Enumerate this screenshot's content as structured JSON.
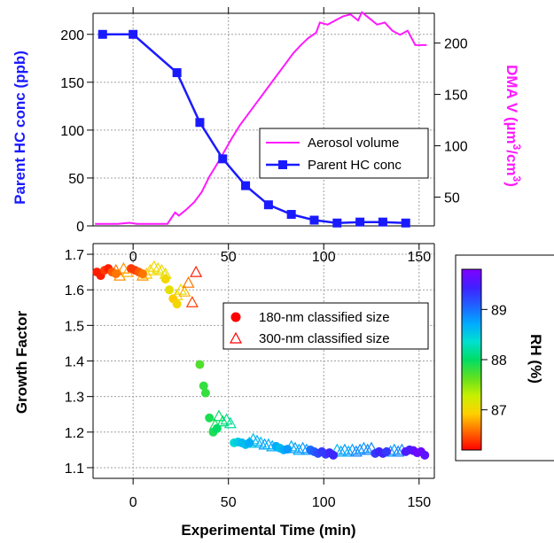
{
  "colors": {
    "hc": "#1a1aff",
    "aerosol": "#ff19ff",
    "grid": "#a0a0a0",
    "axis": "#000000"
  },
  "chart_data": [
    {
      "id": "top",
      "type": "line",
      "xlim": [
        -21,
        158
      ],
      "x_ticks": [
        0,
        50,
        100,
        150
      ],
      "x_tick_labels": [
        "0",
        "50",
        "100",
        "150"
      ],
      "y_left": {
        "label": "Parent HC conc (ppb)",
        "ylim": [
          0,
          222
        ],
        "ticks": [
          0,
          50,
          100,
          150,
          200
        ]
      },
      "y_right": {
        "label": "DMA V (µm³/cm³)",
        "label_main": "DMA V (µm",
        "sup1": "3",
        "label_mid": "/cm",
        "sup2": "3",
        "label_end": ")",
        "ylim": [
          22,
          229
        ],
        "ticks": [
          50,
          100,
          150,
          200
        ]
      },
      "grid": true,
      "legend": {
        "position": "center-right",
        "entries": [
          "Aerosol volume",
          "Parent HC conc"
        ]
      },
      "series": [
        {
          "name": "Parent HC conc",
          "axis": "left",
          "marker": "square",
          "x": [
            -16,
            0,
            23,
            35,
            47,
            59,
            71,
            83,
            95,
            107,
            119,
            131,
            143
          ],
          "values": [
            200,
            200,
            160,
            108,
            70,
            42,
            22,
            12,
            6,
            3,
            4,
            4,
            3
          ]
        },
        {
          "name": "Aerosol volume",
          "axis": "right",
          "marker": "none",
          "x": [
            -20,
            -14,
            -8,
            -2,
            2,
            6,
            12,
            18,
            22,
            24,
            28,
            32,
            36,
            40,
            44,
            48,
            52,
            56,
            60,
            64,
            68,
            72,
            76,
            80,
            84,
            88,
            92,
            96,
            98,
            102,
            106,
            110,
            114,
            118,
            120,
            124,
            128,
            132,
            136,
            140,
            144,
            148,
            154
          ],
          "values": [
            24,
            24,
            24,
            25,
            24,
            24,
            24,
            24,
            35,
            32,
            38,
            45,
            55,
            70,
            82,
            95,
            108,
            120,
            130,
            140,
            150,
            160,
            170,
            180,
            190,
            198,
            205,
            210,
            220,
            218,
            222,
            226,
            228,
            222,
            230,
            224,
            218,
            220,
            212,
            208,
            212,
            198,
            198
          ]
        }
      ]
    },
    {
      "id": "bottom",
      "type": "scatter",
      "xlim": [
        -21,
        158
      ],
      "x_ticks": [
        0,
        50,
        100,
        150
      ],
      "x_tick_labels": [
        "0",
        "50",
        "100",
        "150"
      ],
      "xlabel": "Experimental Time (min)",
      "ylabel": "Growth Factor",
      "ylim": [
        1.07,
        1.73
      ],
      "y_ticks": [
        1.1,
        1.2,
        1.3,
        1.4,
        1.5,
        1.6,
        1.7
      ],
      "y_tick_labels": [
        "1.1",
        "1.2",
        "1.3",
        "1.4",
        "1.5",
        "1.6",
        "1.7"
      ],
      "grid": true,
      "legend": {
        "position": "center-right",
        "entries": [
          "180-nm classified size",
          "300-nm classified size"
        ]
      },
      "series": [
        {
          "name": "180-nm classified size",
          "marker": "circle",
          "points": [
            [
              -19,
              1.65,
              86.3
            ],
            [
              -17,
              1.64,
              86.3
            ],
            [
              -15,
              1.655,
              86.4
            ],
            [
              -13,
              1.66,
              86.3
            ],
            [
              -11,
              1.65,
              86.5
            ],
            [
              -9,
              1.645,
              86.6
            ],
            [
              -1,
              1.66,
              86.4
            ],
            [
              1,
              1.655,
              86.4
            ],
            [
              3,
              1.65,
              86.5
            ],
            [
              5,
              1.645,
              86.6
            ],
            [
              17,
              1.63,
              87.0
            ],
            [
              19,
              1.6,
              87.1
            ],
            [
              21,
              1.575,
              86.9
            ],
            [
              23,
              1.56,
              87.0
            ],
            [
              35,
              1.39,
              87.7
            ],
            [
              37,
              1.33,
              87.8
            ],
            [
              38,
              1.31,
              87.8
            ],
            [
              40,
              1.24,
              87.9
            ],
            [
              42,
              1.2,
              87.9
            ],
            [
              44,
              1.21,
              88.0
            ],
            [
              53,
              1.17,
              88.4
            ],
            [
              55,
              1.172,
              88.5
            ],
            [
              57,
              1.17,
              88.6
            ],
            [
              59,
              1.165,
              88.6
            ],
            [
              61,
              1.17,
              88.7
            ],
            [
              75,
              1.16,
              88.7
            ],
            [
              77,
              1.155,
              88.6
            ],
            [
              79,
              1.15,
              88.7
            ],
            [
              81,
              1.152,
              88.8
            ],
            [
              93,
              1.15,
              89.0
            ],
            [
              95,
              1.145,
              89.1
            ],
            [
              97,
              1.14,
              89.2
            ],
            [
              99,
              1.145,
              89.3
            ],
            [
              101,
              1.138,
              89.3
            ],
            [
              103,
              1.142,
              89.4
            ],
            [
              105,
              1.135,
              89.4
            ],
            [
              127,
              1.14,
              89.3
            ],
            [
              129,
              1.145,
              89.4
            ],
            [
              131,
              1.14,
              89.4
            ],
            [
              133,
              1.145,
              89.3
            ],
            [
              143,
              1.145,
              89.5
            ],
            [
              145,
              1.15,
              89.5
            ],
            [
              147,
              1.148,
              89.6
            ],
            [
              149,
              1.142,
              89.7
            ],
            [
              151,
              1.145,
              89.7
            ],
            [
              153,
              1.135,
              89.6
            ]
          ]
        },
        {
          "name": "300-nm classified size",
          "marker": "triangle",
          "points": [
            [
              -9,
              1.655,
              86.6
            ],
            [
              -7,
              1.64,
              86.7
            ],
            [
              -5,
              1.66,
              86.7
            ],
            [
              -3,
              1.65,
              86.8
            ],
            [
              5,
              1.64,
              86.7
            ],
            [
              7,
              1.645,
              86.9
            ],
            [
              9,
              1.655,
              87.0
            ],
            [
              11,
              1.665,
              87.0
            ],
            [
              13,
              1.66,
              87.1
            ],
            [
              15,
              1.655,
              87.0
            ],
            [
              17,
              1.645,
              87.1
            ],
            [
              23,
              1.585,
              87.0
            ],
            [
              25,
              1.6,
              87.1
            ],
            [
              27,
              1.595,
              86.8
            ],
            [
              29,
              1.62,
              86.6
            ],
            [
              31,
              1.565,
              86.4
            ],
            [
              33,
              1.65,
              86.3
            ],
            [
              43,
              1.22,
              87.9
            ],
            [
              45,
              1.245,
              88.0
            ],
            [
              47,
              1.23,
              88.0
            ],
            [
              49,
              1.235,
              88.1
            ],
            [
              51,
              1.225,
              88.2
            ],
            [
              61,
              1.17,
              88.5
            ],
            [
              63,
              1.18,
              88.6
            ],
            [
              65,
              1.175,
              88.7
            ],
            [
              67,
              1.17,
              88.6
            ],
            [
              69,
              1.165,
              88.8
            ],
            [
              71,
              1.165,
              88.7
            ],
            [
              73,
              1.16,
              88.7
            ],
            [
              83,
              1.16,
              88.7
            ],
            [
              85,
              1.155,
              88.8
            ],
            [
              87,
              1.15,
              88.7
            ],
            [
              89,
              1.155,
              88.8
            ],
            [
              91,
              1.15,
              88.8
            ],
            [
              107,
              1.15,
              88.6
            ],
            [
              109,
              1.145,
              88.7
            ],
            [
              111,
              1.15,
              88.8
            ],
            [
              113,
              1.145,
              88.7
            ],
            [
              115,
              1.15,
              88.8
            ],
            [
              117,
              1.145,
              88.9
            ],
            [
              119,
              1.15,
              88.9
            ],
            [
              121,
              1.155,
              88.8
            ],
            [
              123,
              1.15,
              88.9
            ],
            [
              125,
              1.155,
              88.9
            ],
            [
              135,
              1.145,
              88.8
            ],
            [
              137,
              1.15,
              88.8
            ],
            [
              139,
              1.145,
              88.9
            ],
            [
              141,
              1.15,
              88.9
            ]
          ]
        }
      ],
      "colorscale": {
        "label": "RH (%)",
        "range": [
          86.2,
          89.8
        ],
        "ticks": [
          87,
          88,
          89
        ],
        "tick_labels": [
          "87",
          "88",
          "89"
        ],
        "stops": [
          "#ff0000",
          "#ff6a00",
          "#ffd000",
          "#c8f000",
          "#60e020",
          "#00dd66",
          "#00e0d0",
          "#00aaff",
          "#2060ff",
          "#4020ff",
          "#8000ff"
        ]
      }
    }
  ]
}
